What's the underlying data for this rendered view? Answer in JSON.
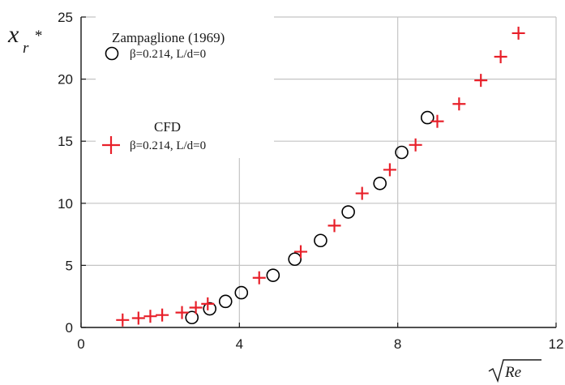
{
  "chart_data": {
    "type": "scatter",
    "xlabel": "√Re",
    "ylabel": {
      "main": "x",
      "sub": "r",
      "sup": "*"
    },
    "xlim": [
      0,
      12
    ],
    "ylim": [
      0,
      25
    ],
    "xticks": [
      0,
      4,
      8,
      12
    ],
    "yticks": [
      0,
      5,
      10,
      15,
      20,
      25
    ],
    "grid": true,
    "legend_position": "top-left",
    "series": [
      {
        "name": "Zampaglione (1969)",
        "label": "β=0.214, L/d=0",
        "marker": "open-circle",
        "color": "#000000",
        "x": [
          2.8,
          3.25,
          3.65,
          4.05,
          4.85,
          5.4,
          6.05,
          6.75,
          7.55,
          8.1,
          8.75
        ],
        "y": [
          0.8,
          1.5,
          2.1,
          2.8,
          4.2,
          5.5,
          7.0,
          9.3,
          11.6,
          14.1,
          16.9
        ]
      },
      {
        "name": "CFD",
        "label": "β=0.214, L/d=0",
        "marker": "plus",
        "color": "#e8202a",
        "x": [
          1.05,
          1.45,
          1.75,
          2.05,
          2.55,
          2.9,
          3.2,
          4.5,
          5.55,
          6.4,
          7.1,
          7.8,
          8.45,
          9.0,
          9.55,
          10.1,
          10.6,
          11.05
        ],
        "y": [
          0.6,
          0.75,
          0.9,
          1.0,
          1.2,
          1.6,
          1.9,
          4.0,
          6.1,
          8.2,
          10.8,
          12.7,
          14.7,
          16.6,
          18.0,
          19.9,
          21.8,
          23.7
        ]
      }
    ]
  }
}
